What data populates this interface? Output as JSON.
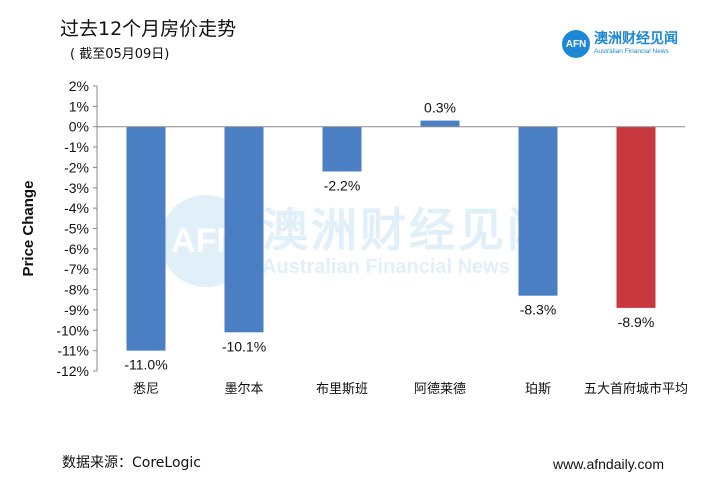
{
  "header": {
    "title": "过去12个月房价走势",
    "subtitle": "( 截至05月09日)"
  },
  "logo": {
    "mark": "AFN",
    "name_cn": "澳洲财经见闻",
    "name_en": "Australian Financial News"
  },
  "watermark": {
    "mark": "AFN",
    "name_cn": "澳洲财经见闻",
    "name_en": "Australian Financial News"
  },
  "footer": {
    "source": "数据来源：CoreLogic",
    "website": "www.afndaily.com"
  },
  "colors": {
    "bar_default": "#4a7fc4",
    "bar_highlight": "#c8383f",
    "logo_blue": "#1e88d6"
  },
  "chart_data": {
    "type": "bar",
    "title": "过去12个月房价走势",
    "xlabel": "",
    "ylabel": "Price Change",
    "ylim": [
      -12,
      2
    ],
    "yticks": [
      2,
      1,
      0,
      -1,
      -2,
      -3,
      -4,
      -5,
      -6,
      -7,
      -8,
      -9,
      -10,
      -11,
      -12
    ],
    "categories": [
      "悉尼",
      "墨尔本",
      "布里斯班",
      "阿德莱德",
      "珀斯",
      "五大首府城市平均"
    ],
    "values": [
      -11.0,
      -10.1,
      -2.2,
      0.3,
      -8.3,
      -8.9
    ],
    "data_labels": [
      "-11.0%",
      "-10.1%",
      "-2.2%",
      "0.3%",
      "-8.3%",
      "-8.9%"
    ],
    "highlight_index": 5
  }
}
